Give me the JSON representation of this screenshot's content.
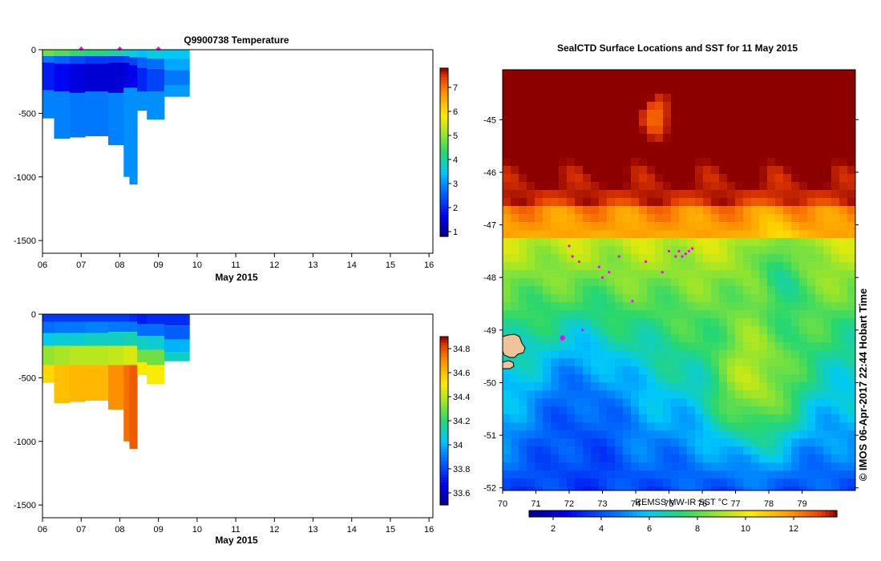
{
  "chart_data": [
    {
      "type": "heatmap",
      "title": "Q9900738  Temperature",
      "xlabel": "May 2015",
      "ylabel": "",
      "x_ticks": [
        "06",
        "07",
        "08",
        "09",
        "10",
        "11",
        "12",
        "13",
        "14",
        "15",
        "16"
      ],
      "xlim": [
        6,
        16.1
      ],
      "y_ticks": [
        "0",
        "-500",
        "-1000",
        "-1500"
      ],
      "ylim": [
        -1600,
        0
      ],
      "colorbar_ticks": [
        "1",
        "2",
        "3",
        "4",
        "5",
        "6",
        "7"
      ],
      "colorbar_range": [
        0.8,
        7.8
      ],
      "profile_markers_x": [
        7.0,
        8.0,
        9.0
      ],
      "profiles": [
        {
          "x0": 6.0,
          "x1": 6.3,
          "bottom": -540,
          "layers": [
            [
              0,
              -50,
              4.8
            ],
            [
              -50,
              -100,
              2.8
            ],
            [
              -100,
              -320,
              1.9
            ],
            [
              -320,
              -540,
              2.9
            ]
          ]
        },
        {
          "x0": 6.3,
          "x1": 6.7,
          "bottom": -700,
          "layers": [
            [
              0,
              -50,
              4.6
            ],
            [
              -50,
              -110,
              2.6
            ],
            [
              -110,
              -330,
              1.7
            ],
            [
              -330,
              -700,
              2.9
            ]
          ]
        },
        {
          "x0": 6.7,
          "x1": 7.1,
          "bottom": -690,
          "layers": [
            [
              0,
              -50,
              4.4
            ],
            [
              -50,
              -110,
              2.4
            ],
            [
              -110,
              -340,
              1.5
            ],
            [
              -340,
              -690,
              2.8
            ]
          ]
        },
        {
          "x0": 7.1,
          "x1": 7.7,
          "bottom": -680,
          "layers": [
            [
              0,
              -50,
              4.2
            ],
            [
              -50,
              -110,
              2.2
            ],
            [
              -110,
              -330,
              1.4
            ],
            [
              -330,
              -680,
              2.8
            ]
          ]
        },
        {
          "x0": 7.7,
          "x1": 8.1,
          "bottom": -750,
          "layers": [
            [
              0,
              -50,
              4.0
            ],
            [
              -50,
              -100,
              2.2
            ],
            [
              -100,
              -340,
              1.4
            ],
            [
              -340,
              -750,
              2.9
            ]
          ]
        },
        {
          "x0": 8.1,
          "x1": 8.25,
          "bottom": -1000,
          "layers": [
            [
              0,
              -50,
              3.8
            ],
            [
              -50,
              -100,
              2.3
            ],
            [
              -100,
              -300,
              1.5
            ],
            [
              -300,
              -1000,
              3.0
            ]
          ]
        },
        {
          "x0": 8.25,
          "x1": 8.45,
          "bottom": -1060,
          "layers": [
            [
              0,
              -60,
              3.6
            ],
            [
              -60,
              -120,
              2.3
            ],
            [
              -120,
              -300,
              1.6
            ],
            [
              -300,
              -1060,
              3.0
            ]
          ]
        },
        {
          "x0": 8.45,
          "x1": 8.7,
          "bottom": -480,
          "layers": [
            [
              0,
              -60,
              3.4
            ],
            [
              -60,
              -140,
              2.6
            ],
            [
              -140,
              -330,
              2.0
            ],
            [
              -330,
              -480,
              3.0
            ]
          ]
        },
        {
          "x0": 8.7,
          "x1": 9.15,
          "bottom": -550,
          "layers": [
            [
              0,
              -70,
              3.6
            ],
            [
              -70,
              -150,
              2.7
            ],
            [
              -150,
              -330,
              2.3
            ],
            [
              -330,
              -550,
              3.0
            ]
          ]
        },
        {
          "x0": 9.15,
          "x1": 9.8,
          "bottom": -370,
          "layers": [
            [
              0,
              -70,
              3.5
            ],
            [
              -70,
              -160,
              3.2
            ],
            [
              -160,
              -280,
              2.8
            ],
            [
              -280,
              -370,
              3.1
            ]
          ]
        }
      ]
    },
    {
      "type": "heatmap",
      "title": "",
      "xlabel": "May 2015",
      "ylabel": "",
      "x_ticks": [
        "06",
        "07",
        "08",
        "09",
        "10",
        "11",
        "12",
        "13",
        "14",
        "15",
        "16"
      ],
      "xlim": [
        6,
        16.1
      ],
      "y_ticks": [
        "0",
        "-500",
        "-1000",
        "-1500"
      ],
      "ylim": [
        -1600,
        0
      ],
      "colorbar_ticks": [
        "33.6",
        "33.8",
        "34",
        "34.2",
        "34.4",
        "34.6",
        "34.8"
      ],
      "colorbar_range": [
        33.5,
        34.9
      ],
      "profiles": [
        {
          "x0": 6.0,
          "x1": 6.3,
          "bottom": -540,
          "layers": [
            [
              0,
              -60,
              33.78
            ],
            [
              -60,
              -150,
              33.88
            ],
            [
              -150,
              -250,
              34.05
            ],
            [
              -250,
              -400,
              34.35
            ],
            [
              -400,
              -540,
              34.55
            ]
          ]
        },
        {
          "x0": 6.3,
          "x1": 6.7,
          "bottom": -700,
          "layers": [
            [
              0,
              -60,
              33.78
            ],
            [
              -60,
              -150,
              33.9
            ],
            [
              -150,
              -250,
              34.08
            ],
            [
              -250,
              -400,
              34.38
            ],
            [
              -400,
              -700,
              34.6
            ]
          ]
        },
        {
          "x0": 6.7,
          "x1": 7.1,
          "bottom": -690,
          "layers": [
            [
              0,
              -60,
              33.78
            ],
            [
              -60,
              -150,
              33.9
            ],
            [
              -150,
              -250,
              34.08
            ],
            [
              -250,
              -400,
              34.4
            ],
            [
              -400,
              -690,
              34.62
            ]
          ]
        },
        {
          "x0": 7.1,
          "x1": 7.7,
          "bottom": -680,
          "layers": [
            [
              0,
              -60,
              33.78
            ],
            [
              -60,
              -150,
              33.92
            ],
            [
              -150,
              -250,
              34.1
            ],
            [
              -250,
              -400,
              34.4
            ],
            [
              -400,
              -680,
              34.62
            ]
          ]
        },
        {
          "x0": 7.7,
          "x1": 8.1,
          "bottom": -750,
          "layers": [
            [
              0,
              -60,
              33.78
            ],
            [
              -60,
              -140,
              33.9
            ],
            [
              -140,
              -250,
              34.1
            ],
            [
              -250,
              -400,
              34.42
            ],
            [
              -400,
              -750,
              34.7
            ]
          ]
        },
        {
          "x0": 8.1,
          "x1": 8.25,
          "bottom": -1000,
          "layers": [
            [
              0,
              -60,
              33.78
            ],
            [
              -60,
              -140,
              33.9
            ],
            [
              -140,
              -250,
              34.12
            ],
            [
              -250,
              -400,
              34.45
            ],
            [
              -400,
              -1000,
              34.75
            ]
          ]
        },
        {
          "x0": 8.25,
          "x1": 8.45,
          "bottom": -1060,
          "layers": [
            [
              0,
              -60,
              33.75
            ],
            [
              -60,
              -140,
              33.9
            ],
            [
              -140,
              -250,
              34.12
            ],
            [
              -250,
              -400,
              34.45
            ],
            [
              -400,
              -1060,
              34.78
            ]
          ]
        },
        {
          "x0": 8.45,
          "x1": 8.7,
          "bottom": -480,
          "layers": [
            [
              0,
              -80,
              33.72
            ],
            [
              -80,
              -170,
              33.88
            ],
            [
              -170,
              -280,
              34.1
            ],
            [
              -280,
              -380,
              34.3
            ],
            [
              -380,
              -480,
              34.5
            ]
          ]
        },
        {
          "x0": 8.7,
          "x1": 9.15,
          "bottom": -550,
          "layers": [
            [
              0,
              -80,
              33.75
            ],
            [
              -80,
              -170,
              33.88
            ],
            [
              -170,
              -280,
              34.08
            ],
            [
              -280,
              -400,
              34.3
            ],
            [
              -400,
              -550,
              34.5
            ]
          ]
        },
        {
          "x0": 9.15,
          "x1": 9.8,
          "bottom": -370,
          "layers": [
            [
              0,
              -90,
              33.75
            ],
            [
              -90,
              -200,
              33.85
            ],
            [
              -200,
              -300,
              34.0
            ],
            [
              -300,
              -370,
              34.1
            ]
          ]
        }
      ]
    },
    {
      "type": "heatmap",
      "title": "SealCTD Surface Locations and SST for 11 May 2015",
      "xlabel": "",
      "ylabel": "",
      "x_ticks": [
        "70",
        "71",
        "72",
        "73",
        "74",
        "75",
        "76",
        "77",
        "78",
        "79"
      ],
      "xlim": [
        70,
        80.6
      ],
      "y_ticks": [
        "-45",
        "-46",
        "-47",
        "-48",
        "-49",
        "-50",
        "-51",
        "-52"
      ],
      "ylim": [
        -52.05,
        -44.05
      ],
      "colorbar_label": "REMSS MW-IR SST °C",
      "colorbar_ticks": [
        "2",
        "4",
        "6",
        "8",
        "10",
        "12"
      ],
      "colorbar_range": [
        1,
        13.8
      ],
      "track_points": [
        [
          72.1,
          -47.6
        ],
        [
          72.3,
          -47.7
        ],
        [
          72.9,
          -47.8
        ],
        [
          73.2,
          -47.9
        ],
        [
          73.5,
          -47.6
        ],
        [
          74.3,
          -47.7
        ],
        [
          74.8,
          -47.9
        ],
        [
          75.0,
          -47.5
        ],
        [
          75.2,
          -47.6
        ],
        [
          75.3,
          -47.5
        ],
        [
          75.4,
          -47.6
        ],
        [
          75.5,
          -47.55
        ],
        [
          75.6,
          -47.5
        ],
        [
          75.7,
          -47.45
        ],
        [
          72.4,
          -49.0
        ],
        [
          73.9,
          -48.45
        ],
        [
          72.0,
          -47.4
        ],
        [
          73.0,
          -48.0
        ]
      ],
      "highlight_point": [
        71.8,
        -49.15
      ],
      "side_text": "© IMOS 06-Apr-2017 22:44 Hobart Time"
    }
  ]
}
